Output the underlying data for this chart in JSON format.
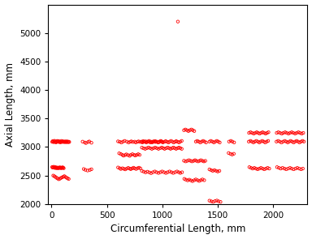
{
  "xlabel": "Circumferential Length, mm",
  "ylabel": "Axial Length, mm",
  "xlim": [
    -30,
    2310
  ],
  "ylim": [
    2000,
    5500
  ],
  "xticks": [
    0,
    500,
    1000,
    1500,
    2000
  ],
  "yticks": [
    2000,
    2500,
    3000,
    3500,
    4000,
    4500,
    5000
  ],
  "marker_color": "#FF0000",
  "x": [
    5,
    10,
    15,
    20,
    25,
    30,
    35,
    40,
    45,
    50,
    55,
    60,
    65,
    70,
    75,
    80,
    85,
    90,
    95,
    100,
    105,
    110,
    115,
    120,
    125,
    130,
    135,
    140,
    145,
    150,
    155,
    160,
    5,
    10,
    15,
    20,
    25,
    30,
    35,
    40,
    45,
    50,
    55,
    60,
    65,
    70,
    75,
    80,
    85,
    90,
    95,
    100,
    105,
    110,
    15,
    25,
    35,
    45,
    55,
    65,
    75,
    85,
    95,
    105,
    115,
    125,
    135,
    145,
    155,
    280,
    300,
    310,
    330,
    340,
    360,
    290,
    305,
    325,
    345,
    360,
    600,
    615,
    630,
    645,
    660,
    680,
    695,
    710,
    720,
    735,
    750,
    760,
    775,
    785,
    800,
    810,
    820,
    835,
    850,
    860,
    875,
    890,
    905,
    920,
    935,
    950,
    965,
    975,
    990,
    1000,
    610,
    625,
    640,
    650,
    665,
    675,
    690,
    705,
    715,
    730,
    745,
    755,
    768,
    782,
    795,
    600,
    615,
    625,
    640,
    652,
    665,
    678,
    692,
    705,
    715,
    727,
    740,
    750,
    763,
    776,
    789,
    802,
    815,
    828,
    840,
    855,
    868,
    880,
    895,
    908,
    920,
    935,
    945,
    960,
    972,
    985,
    995,
    1005,
    1018,
    1030,
    1042,
    1055,
    1065,
    1078,
    1090,
    1102,
    1115,
    1125,
    1138,
    1150,
    1162,
    1175,
    815,
    830,
    845,
    860,
    875,
    890,
    905,
    920,
    935,
    950,
    965,
    980,
    995,
    1008,
    1020,
    1035,
    1048,
    1062,
    1074,
    1088,
    1100,
    1112,
    1124,
    1138,
    1150,
    1162,
    1175,
    815,
    832,
    848,
    865,
    882,
    898,
    915,
    932,
    948,
    965,
    982,
    998,
    1015,
    1032,
    1048,
    1065,
    1082,
    1098,
    1115,
    1132,
    1148,
    1162,
    1178,
    1195,
    1208,
    1222,
    1235,
    1248,
    1262,
    1275,
    1288,
    1302,
    1315,
    1328,
    1342,
    1355,
    1368,
    1382,
    1395,
    1195,
    1210,
    1225,
    1240,
    1255,
    1268,
    1282,
    1295,
    1308,
    1322,
    1335,
    1348,
    1362,
    1375,
    1388,
    1198,
    1212,
    1228,
    1242,
    1258,
    1272,
    1288,
    1302,
    1318,
    1332,
    1348,
    1362,
    1378,
    1425,
    1438,
    1452,
    1465,
    1478,
    1492,
    1505,
    1518,
    1425,
    1440,
    1455,
    1470,
    1485,
    1500,
    1515,
    1425,
    1442,
    1458,
    1475,
    1492,
    1508,
    1525,
    1602,
    1618,
    1632,
    1648,
    1598,
    1615,
    1630,
    1645,
    1780,
    1795,
    1808,
    1822,
    1835,
    1848,
    1862,
    1875,
    1888,
    1902,
    1915,
    1928,
    1942,
    1955,
    1782,
    1796,
    1810,
    1825,
    1838,
    1852,
    1865,
    1878,
    1892,
    1905,
    1918,
    1932,
    1945,
    1958,
    1785,
    1800,
    1815,
    1830,
    1845,
    1860,
    1875,
    1890,
    1905,
    1920,
    1935,
    1950,
    1965,
    2030,
    2045,
    2060,
    2075,
    2090,
    2105,
    2118,
    2132,
    2145,
    2158,
    2172,
    2185,
    2198,
    2212,
    2225,
    2238,
    2252,
    2265,
    2278,
    2032,
    2047,
    2062,
    2078,
    2092,
    2108,
    2122,
    2138,
    2152,
    2168,
    2182,
    2198,
    2212,
    2228,
    2242,
    2258,
    2272,
    2035,
    2052,
    2068,
    2085,
    2102,
    2118,
    2135,
    2152,
    2168,
    2185,
    2202,
    2218,
    2235,
    2252,
    2268,
    1140
  ],
  "y": [
    3090,
    3105,
    3095,
    3085,
    3110,
    3100,
    3090,
    3080,
    3095,
    3108,
    3092,
    3105,
    3088,
    3100,
    3092,
    3080,
    3095,
    3108,
    3090,
    3100,
    3088,
    3098,
    3092,
    3085,
    3100,
    3092,
    3085,
    3100,
    3092,
    3085,
    3095,
    3088,
    2650,
    2638,
    2645,
    2655,
    2640,
    2632,
    2648,
    2638,
    2628,
    2642,
    2635,
    2628,
    2640,
    2632,
    2645,
    2638,
    2628,
    2640,
    2632,
    2645,
    2638,
    2628,
    2500,
    2488,
    2475,
    2460,
    2448,
    2435,
    2445,
    2458,
    2468,
    2478,
    2490,
    2475,
    2462,
    2450,
    2440,
    3095,
    3080,
    3070,
    3088,
    3098,
    3075,
    2615,
    2600,
    2588,
    2598,
    2610,
    3100,
    3092,
    3080,
    3095,
    3108,
    3095,
    3080,
    3092,
    3100,
    3088,
    3095,
    3080,
    3092,
    3100,
    3088,
    3095,
    3080,
    3092,
    3100,
    3088,
    3095,
    3080,
    3092,
    3100,
    3088,
    3095,
    3080,
    3092,
    3100,
    3088,
    2890,
    2878,
    2862,
    2848,
    2860,
    2872,
    2858,
    2845,
    2862,
    2875,
    2862,
    2850,
    2862,
    2875,
    2862,
    2642,
    2628,
    2615,
    2628,
    2618,
    2608,
    2622,
    2635,
    2622,
    2612,
    2625,
    2638,
    2625,
    2615,
    2628,
    2638,
    2625,
    3092,
    3105,
    3092,
    3080,
    3095,
    3108,
    3095,
    3080,
    3092,
    3105,
    3092,
    3080,
    3095,
    3108,
    3095,
    3080,
    3092,
    3105,
    3092,
    3080,
    3095,
    3108,
    3095,
    3080,
    3092,
    3105,
    3092,
    3080,
    3095,
    3108,
    2990,
    2978,
    2968,
    2980,
    2992,
    2980,
    2968,
    2980,
    2992,
    2980,
    2968,
    2980,
    2992,
    2980,
    2968,
    2980,
    2992,
    2980,
    2968,
    2980,
    2992,
    2980,
    2968,
    2980,
    2992,
    2980,
    2968,
    2582,
    2568,
    2555,
    2568,
    2555,
    2542,
    2558,
    2572,
    2558,
    2545,
    2558,
    2572,
    2558,
    2545,
    2558,
    2572,
    2558,
    2545,
    2558,
    2572,
    2558,
    2545,
    2558,
    3295,
    3308,
    3295,
    3280,
    3295,
    3308,
    3295,
    3280,
    3095,
    3108,
    3095,
    3080,
    3095,
    3108,
    3095,
    3080,
    2760,
    2748,
    2758,
    2770,
    2758,
    2748,
    2758,
    2770,
    2758,
    2748,
    2758,
    2770,
    2758,
    2748,
    2758,
    2442,
    2428,
    2415,
    2428,
    2415,
    2402,
    2418,
    2432,
    2418,
    2405,
    2418,
    2432,
    2418,
    3095,
    3108,
    3095,
    3080,
    3095,
    3108,
    3095,
    3080,
    2608,
    2595,
    2582,
    2595,
    2582,
    2570,
    2582,
    2060,
    2048,
    2038,
    2052,
    2062,
    2048,
    2038,
    3095,
    3108,
    3095,
    3080,
    2895,
    2880,
    2868,
    2882,
    3095,
    3108,
    3095,
    3080,
    3095,
    3108,
    3095,
    3080,
    3095,
    3108,
    3095,
    3080,
    3095,
    3108,
    3248,
    3260,
    3248,
    3235,
    3248,
    3260,
    3248,
    3235,
    3248,
    3260,
    3248,
    3235,
    3248,
    3260,
    2648,
    2635,
    2622,
    2635,
    2622,
    2610,
    2622,
    2635,
    2622,
    2610,
    2622,
    2635,
    2622,
    3095,
    3108,
    3095,
    3080,
    3095,
    3108,
    3095,
    3080,
    3095,
    3108,
    3095,
    3080,
    3095,
    3108,
    3095,
    3080,
    3095,
    3108,
    3095,
    3248,
    3260,
    3248,
    3235,
    3248,
    3260,
    3248,
    3235,
    3248,
    3260,
    3248,
    3235,
    3248,
    3260,
    3248,
    3235,
    3248,
    2648,
    2635,
    2622,
    2635,
    2622,
    2610,
    2622,
    2635,
    2622,
    2610,
    2622,
    2635,
    2622,
    2610,
    2622,
    5200
  ]
}
